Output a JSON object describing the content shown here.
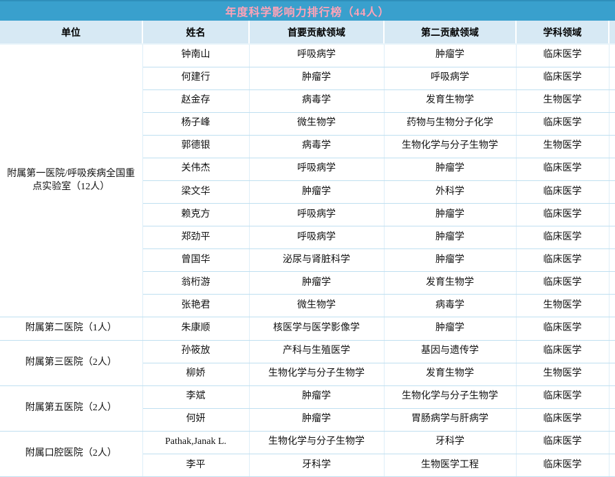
{
  "title": "年度科学影响力排行榜（44人）",
  "colors": {
    "title_bar_bg": "#39a0cd",
    "title_text": "#ffa3b8",
    "header_bg": "#d7e9f4",
    "row_bg": "#ffffff",
    "row_border": "#bfdff0",
    "body_text": "#111111"
  },
  "table": {
    "headers": [
      "单位",
      "姓名",
      "首要贡献领域",
      "第二贡献领域",
      "学科领域"
    ],
    "groups": [
      {
        "unit": "附属第一医院/呼吸疾病全国重点实验室（12人）",
        "rows": [
          {
            "name": "钟南山",
            "primary": "呼吸病学",
            "secondary": "肿瘤学",
            "discipline": "临床医学"
          },
          {
            "name": "何建行",
            "primary": "肿瘤学",
            "secondary": "呼吸病学",
            "discipline": "临床医学"
          },
          {
            "name": "赵金存",
            "primary": "病毒学",
            "secondary": "发育生物学",
            "discipline": "生物医学"
          },
          {
            "name": "杨子峰",
            "primary": "微生物学",
            "secondary": "药物与生物分子化学",
            "discipline": "临床医学"
          },
          {
            "name": "郭德银",
            "primary": "病毒学",
            "secondary": "生物化学与分子生物学",
            "discipline": "生物医学"
          },
          {
            "name": "关伟杰",
            "primary": "呼吸病学",
            "secondary": "肿瘤学",
            "discipline": "临床医学"
          },
          {
            "name": "梁文华",
            "primary": "肿瘤学",
            "secondary": "外科学",
            "discipline": "临床医学"
          },
          {
            "name": "赖克方",
            "primary": "呼吸病学",
            "secondary": "肿瘤学",
            "discipline": "临床医学"
          },
          {
            "name": "郑劲平",
            "primary": "呼吸病学",
            "secondary": "肿瘤学",
            "discipline": "临床医学"
          },
          {
            "name": "曾国华",
            "primary": "泌尿与肾脏科学",
            "secondary": "肿瘤学",
            "discipline": "临床医学"
          },
          {
            "name": "翁桁游",
            "primary": "肿瘤学",
            "secondary": "发育生物学",
            "discipline": "临床医学"
          },
          {
            "name": "张艳君",
            "primary": "微生物学",
            "secondary": "病毒学",
            "discipline": "生物医学"
          }
        ]
      },
      {
        "unit": "附属第二医院（1人）",
        "rows": [
          {
            "name": "朱康顺",
            "primary": "核医学与医学影像学",
            "secondary": "肿瘤学",
            "discipline": "临床医学"
          }
        ]
      },
      {
        "unit": "附属第三医院（2人）",
        "rows": [
          {
            "name": "孙筱放",
            "primary": "产科与生殖医学",
            "secondary": "基因与遗传学",
            "discipline": "临床医学"
          },
          {
            "name": "柳娇",
            "primary": "生物化学与分子生物学",
            "secondary": "发育生物学",
            "discipline": "生物医学"
          }
        ]
      },
      {
        "unit": "附属第五医院（2人）",
        "rows": [
          {
            "name": "李斌",
            "primary": "肿瘤学",
            "secondary": "生物化学与分子生物学",
            "discipline": "临床医学"
          },
          {
            "name": "何妍",
            "primary": "肿瘤学",
            "secondary": "胃肠病学与肝病学",
            "discipline": "临床医学"
          }
        ]
      },
      {
        "unit": "附属口腔医院（2人）",
        "rows": [
          {
            "name": "Pathak,Janak L.",
            "primary": "生物化学与分子生物学",
            "secondary": "牙科学",
            "discipline": "临床医学"
          },
          {
            "name": "李平",
            "primary": "牙科学",
            "secondary": "生物医学工程",
            "discipline": "临床医学"
          }
        ]
      }
    ]
  }
}
